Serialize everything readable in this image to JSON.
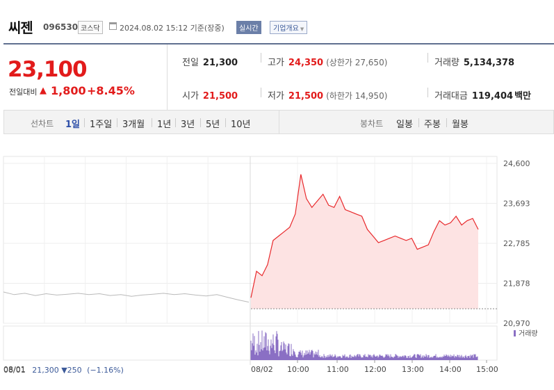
{
  "header": {
    "name": "씨젠",
    "code": "096530",
    "market": "코스닥",
    "timestamp": "2024.08.02 15:12 기준(장중)",
    "realtime": "실시간",
    "company_btn": "기업개요"
  },
  "price": {
    "current": "23,100",
    "change_label": "전일대비",
    "change": "1,800",
    "change_pct": "+8.45%"
  },
  "stats": {
    "prev_close": {
      "k": "전일",
      "v": "21,300"
    },
    "open": {
      "k": "시가",
      "v": "21,500"
    },
    "high": {
      "k": "고가",
      "v": "24,350",
      "sub": "(상한가 27,650)"
    },
    "low": {
      "k": "저가",
      "v": "21,500",
      "sub": "(하한가 14,950)"
    },
    "volume": {
      "k": "거래량",
      "v": "5,134,378"
    },
    "amount": {
      "k": "거래대금",
      "v": "119,404",
      "unit": "백만"
    }
  },
  "period_tabs": {
    "line_label": "선차트",
    "line_tabs": [
      "1일",
      "1주일",
      "3개월",
      "1년",
      "3년",
      "5년",
      "10년"
    ],
    "candle_label": "봉차트",
    "candle_tabs": [
      "일봉",
      "주봉",
      "월봉"
    ]
  },
  "chart_data": {
    "type": "line",
    "y_ticks": [
      "24,600",
      "23,693",
      "22,785",
      "21,878",
      "20,970"
    ],
    "ylim": [
      20970,
      24600
    ],
    "x_ticks": [
      "08/01",
      "08/02",
      "10:00",
      "11:00",
      "12:00",
      "13:00",
      "14:00",
      "15:00"
    ],
    "volume_label": "거래량",
    "prev_day_info": {
      "date": "08/01",
      "close": "21,300",
      "change": "250",
      "change_pct": "(−1.16%)"
    },
    "baseline": 21300,
    "prev_day_series": [
      21680,
      21620,
      21650,
      21600,
      21640,
      21610,
      21630,
      21650,
      21620,
      21640,
      21600,
      21620,
      21580,
      21610,
      21630,
      21650,
      21620,
      21640,
      21610,
      21590,
      21620,
      21560,
      21500,
      21450
    ],
    "today_series": [
      21550,
      22150,
      22050,
      22300,
      22850,
      22950,
      23050,
      23150,
      23450,
      24350,
      23800,
      23600,
      23750,
      23900,
      23650,
      23600,
      23850,
      23550,
      23500,
      23450,
      23400,
      23100,
      22950,
      22800,
      22850,
      22900,
      22950,
      22900,
      22850,
      22900,
      22650,
      22700,
      22750,
      23050,
      23300,
      23200,
      23250,
      23400,
      23200,
      23300,
      23350,
      23100
    ],
    "colors": {
      "up": "#e8282b",
      "fill": "#fde3e3",
      "prev": "#b9b9b9",
      "volume": "#8a6fc4"
    }
  }
}
